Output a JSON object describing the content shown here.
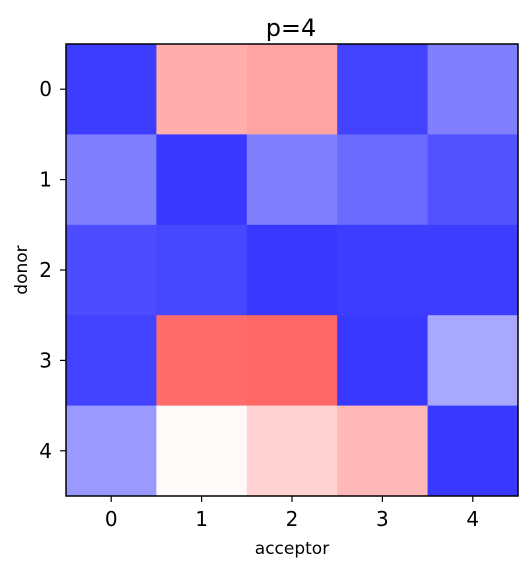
{
  "chart_data": {
    "type": "heatmap",
    "title": "p=4",
    "xlabel": "acceptor",
    "ylabel": "donor",
    "x_categories": [
      "0",
      "1",
      "2",
      "3",
      "4"
    ],
    "y_categories": [
      "0",
      "1",
      "2",
      "3",
      "4"
    ],
    "colormap": "bwr",
    "value_range": [
      0,
      1
    ],
    "values": [
      [
        0.12,
        0.66,
        0.68,
        0.13,
        0.25
      ],
      [
        0.25,
        0.11,
        0.25,
        0.21,
        0.16
      ],
      [
        0.15,
        0.14,
        0.11,
        0.12,
        0.12
      ],
      [
        0.13,
        0.79,
        0.8,
        0.11,
        0.33
      ],
      [
        0.3,
        0.51,
        0.59,
        0.64,
        0.11
      ]
    ]
  }
}
